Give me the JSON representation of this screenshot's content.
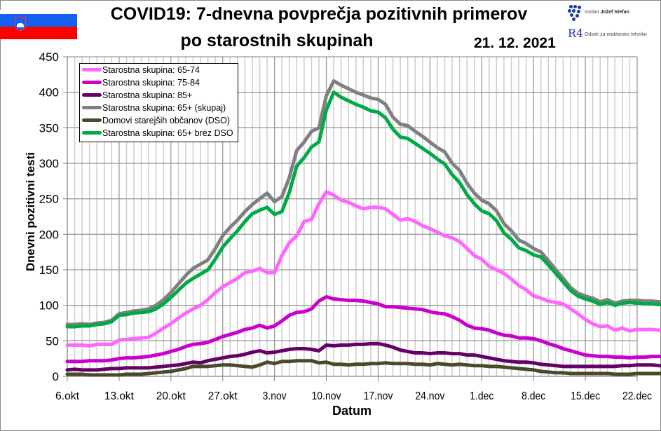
{
  "header": {
    "title_line1": "COVID19: 7-dnevna povprečja pozitivnih primerov",
    "title_line2": "po starostnih skupinah",
    "date": "21. 12. 2021",
    "logo_ijs_prefix": "Institut ",
    "logo_ijs_name": "Jožef Stefan",
    "logo_r4_mark": "R4",
    "logo_r4_text": "Odsek za reaktorsko tehniko",
    "flag": "slovenia-flag"
  },
  "chart_data": {
    "type": "line",
    "title": "COVID19: 7-dnevna povprečja pozitivnih primerov po starostnih skupinah",
    "xlabel": "Datum",
    "ylabel": "Dnevni pozitivni testi",
    "ylim": [
      0,
      450
    ],
    "yticks": [
      "0",
      "50",
      "100",
      "150",
      "200",
      "250",
      "300",
      "350",
      "400",
      "450"
    ],
    "xticks": [
      "6.okt",
      "13.okt",
      "20.okt",
      "27.okt",
      "3.nov",
      "10.nov",
      "17.nov",
      "24.nov",
      "1.dec",
      "8.dec",
      "15.dec",
      "22.dec"
    ],
    "x_range_days": [
      0,
      77
    ],
    "x_start": "6.okt",
    "x_step": "1 day",
    "grid": true,
    "legend_position": "top-left",
    "series": [
      {
        "name": "Starostna skupina: 65-74",
        "color": "#ff66ff",
        "values": [
          44,
          44,
          44,
          43,
          45,
          45,
          45,
          51,
          52,
          53,
          54,
          55,
          61,
          68,
          74,
          82,
          89,
          95,
          100,
          108,
          118,
          126,
          132,
          138,
          146,
          148,
          152,
          146,
          146,
          170,
          188,
          198,
          218,
          221,
          243,
          260,
          255,
          248,
          245,
          240,
          236,
          238,
          238,
          236,
          228,
          220,
          222,
          218,
          212,
          208,
          203,
          198,
          195,
          190,
          180,
          170,
          165,
          155,
          150,
          145,
          137,
          128,
          122,
          113,
          110,
          106,
          104,
          102,
          95,
          88,
          80,
          74,
          70,
          71,
          65,
          68,
          64,
          66,
          66,
          66,
          65,
          64
        ]
      },
      {
        "name": "Starostna skupina: 75-84",
        "color": "#cc00cc",
        "values": [
          21,
          21,
          21,
          22,
          22,
          22,
          23,
          25,
          26,
          26,
          27,
          28,
          30,
          32,
          35,
          38,
          42,
          45,
          46,
          48,
          52,
          56,
          59,
          62,
          66,
          68,
          72,
          68,
          71,
          78,
          86,
          90,
          91,
          95,
          106,
          112,
          109,
          108,
          107,
          107,
          106,
          104,
          102,
          98,
          98,
          97,
          96,
          95,
          94,
          91,
          89,
          88,
          84,
          79,
          72,
          68,
          67,
          65,
          61,
          58,
          57,
          54,
          54,
          53,
          50,
          46,
          43,
          39,
          36,
          33,
          30,
          29,
          28,
          28,
          27,
          27,
          26,
          27,
          27,
          28,
          28,
          28
        ]
      },
      {
        "name": "Starostna skupina: 85+",
        "color": "#660066",
        "values": [
          9,
          10,
          9,
          9,
          9,
          10,
          11,
          11,
          12,
          12,
          12,
          12,
          13,
          14,
          15,
          16,
          18,
          20,
          19,
          22,
          24,
          26,
          28,
          29,
          31,
          34,
          36,
          33,
          34,
          36,
          38,
          39,
          39,
          38,
          36,
          44,
          43,
          44,
          44,
          45,
          45,
          46,
          46,
          44,
          41,
          37,
          35,
          33,
          33,
          32,
          33,
          33,
          32,
          32,
          30,
          30,
          28,
          26,
          24,
          22,
          21,
          20,
          20,
          19,
          17,
          16,
          15,
          14,
          14,
          14,
          14,
          14,
          14,
          14,
          14,
          15,
          15,
          16,
          16,
          16,
          15,
          15
        ]
      },
      {
        "name": "Starostna skupina: 65+ (skupaj)",
        "color": "#808080",
        "values": [
          73,
          73,
          74,
          73,
          75,
          76,
          79,
          88,
          90,
          92,
          93,
          95,
          100,
          108,
          118,
          130,
          142,
          152,
          158,
          164,
          180,
          198,
          210,
          220,
          232,
          242,
          250,
          258,
          246,
          253,
          280,
          318,
          330,
          345,
          350,
          395,
          416,
          410,
          405,
          400,
          396,
          392,
          390,
          383,
          365,
          355,
          353,
          345,
          338,
          330,
          322,
          316,
          300,
          290,
          272,
          258,
          248,
          243,
          233,
          215,
          205,
          192,
          187,
          180,
          175,
          163,
          150,
          138,
          125,
          117,
          113,
          110,
          105,
          108,
          103,
          106,
          107,
          107,
          106,
          106,
          105,
          105
        ]
      },
      {
        "name": "Domovi starejših občanov (DSO)",
        "color": "#4a4a2a",
        "values": [
          3,
          3,
          3,
          2,
          2,
          2,
          2,
          2,
          3,
          3,
          3,
          4,
          5,
          6,
          7,
          9,
          11,
          14,
          14,
          14,
          15,
          16,
          16,
          15,
          14,
          13,
          16,
          20,
          18,
          21,
          21,
          22,
          22,
          22,
          19,
          20,
          17,
          17,
          16,
          17,
          17,
          18,
          18,
          19,
          18,
          18,
          18,
          17,
          17,
          16,
          18,
          17,
          16,
          17,
          16,
          15,
          15,
          14,
          14,
          13,
          12,
          11,
          10,
          9,
          7,
          6,
          5,
          5,
          4,
          4,
          4,
          4,
          4,
          4,
          3,
          3,
          3,
          4,
          4,
          4,
          4,
          4
        ]
      },
      {
        "name": "Starostna skupina: 65+ brez DSO",
        "color": "#00aa44",
        "values": [
          70,
          70,
          71,
          71,
          73,
          74,
          77,
          86,
          87,
          89,
          90,
          91,
          95,
          102,
          111,
          121,
          131,
          138,
          144,
          150,
          165,
          182,
          194,
          205,
          218,
          229,
          234,
          238,
          228,
          232,
          259,
          296,
          308,
          323,
          330,
          375,
          400,
          393,
          388,
          383,
          379,
          374,
          372,
          364,
          348,
          337,
          335,
          328,
          321,
          314,
          306,
          299,
          284,
          273,
          256,
          243,
          233,
          229,
          219,
          202,
          193,
          181,
          177,
          171,
          168,
          157,
          145,
          133,
          121,
          113,
          109,
          106,
          101,
          104,
          100,
          103,
          104,
          103,
          102,
          102,
          101,
          101
        ]
      }
    ]
  }
}
